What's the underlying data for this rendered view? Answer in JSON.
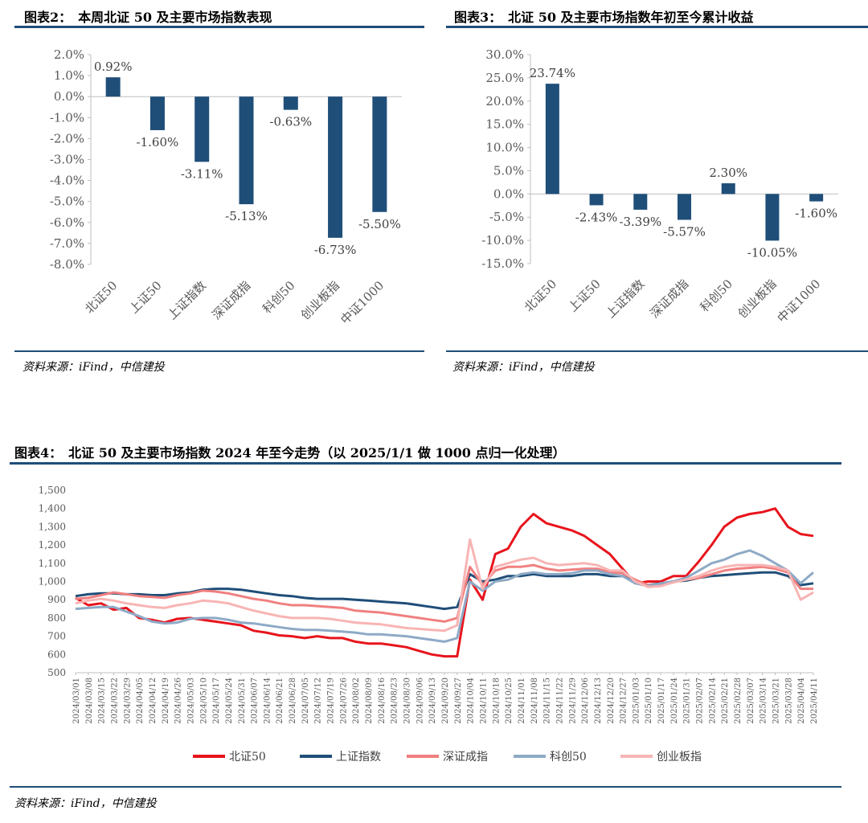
{
  "fig2": {
    "title": "图表2：　本周北证 50 及主要市场指数表现",
    "source": "资料来源：iFind，中信建投",
    "chart_data": {
      "type": "bar",
      "categories": [
        "北证50",
        "上证50",
        "上证指数",
        "深证成指",
        "科创50",
        "创业板指",
        "中证1000"
      ],
      "values": [
        0.92,
        -1.6,
        -3.11,
        -5.13,
        -0.63,
        -6.73,
        -5.5
      ],
      "value_labels": [
        "0.92%",
        "-1.60%",
        "-3.11%",
        "-5.13%",
        "-0.63%",
        "-6.73%",
        "-5.50%"
      ],
      "ylim": [
        -8,
        2
      ],
      "yticks": [
        "2.0%",
        "1.0%",
        "0.0%",
        "-1.0%",
        "-2.0%",
        "-3.0%",
        "-4.0%",
        "-5.0%",
        "-6.0%",
        "-7.0%",
        "-8.0%"
      ],
      "color": "#1f4e79"
    }
  },
  "fig3": {
    "title": "图表3：　北证 50 及主要市场指数年初至今累计收益",
    "source": "资料来源：iFind，中信建投",
    "chart_data": {
      "type": "bar",
      "categories": [
        "北证50",
        "上证50",
        "上证指数",
        "深证成指",
        "科创50",
        "创业板指",
        "中证1000"
      ],
      "values": [
        23.74,
        -2.43,
        -3.39,
        -5.57,
        2.3,
        -10.05,
        -1.6
      ],
      "value_labels": [
        "23.74%",
        "-2.43%",
        "-3.39%",
        "-5.57%",
        "2.30%",
        "-10.05%",
        "-1.60%"
      ],
      "ylim": [
        -15,
        30
      ],
      "yticks": [
        "30.0%",
        "25.0%",
        "20.0%",
        "15.0%",
        "10.0%",
        "5.0%",
        "0.0%",
        "-5.0%",
        "-10.0%",
        "-15.0%"
      ],
      "color": "#1f4e79"
    }
  },
  "fig4": {
    "title": "图表4：　北证 50 及主要市场指数 2024 年至今走势（以 2025/1/1 做 1000 点归一化处理）",
    "source": "资料来源：iFind，中信建投",
    "chart_data": {
      "type": "line",
      "ylim": [
        500,
        1500
      ],
      "yticks": [
        "1,500",
        "1,400",
        "1,300",
        "1,200",
        "1,100",
        "1,000",
        "900",
        "800",
        "700",
        "600",
        "500"
      ],
      "x": [
        "2024/03/01",
        "2024/03/08",
        "2024/03/15",
        "2024/03/22",
        "2024/03/29",
        "2024/04/05",
        "2024/04/12",
        "2024/04/19",
        "2024/04/26",
        "2024/05/03",
        "2024/05/10",
        "2024/05/17",
        "2024/05/24",
        "2024/05/31",
        "2024/06/07",
        "2024/06/14",
        "2024/06/21",
        "2024/06/28",
        "2024/07/05",
        "2024/07/12",
        "2024/07/19",
        "2024/07/26",
        "2024/08/02",
        "2024/08/09",
        "2024/08/16",
        "2024/08/23",
        "2024/08/30",
        "2024/09/06",
        "2024/09/13",
        "2024/09/20",
        "2024/09/27",
        "2024/10/04",
        "2024/10/11",
        "2024/10/18",
        "2024/10/25",
        "2024/11/01",
        "2024/11/08",
        "2024/11/15",
        "2024/11/22",
        "2024/11/29",
        "2024/12/06",
        "2024/12/13",
        "2024/12/20",
        "2024/12/27",
        "2025/01/03",
        "2025/01/10",
        "2025/01/17",
        "2025/01/24",
        "2025/01/31",
        "2025/02/07",
        "2025/02/14",
        "2025/02/21",
        "2025/02/28",
        "2025/03/07",
        "2025/03/14",
        "2025/03/21",
        "2025/03/28",
        "2025/04/04",
        "2025/04/11"
      ],
      "series": [
        {
          "name": "北证50",
          "color": "#e8141c",
          "values": [
            910,
            870,
            880,
            845,
            855,
            800,
            790,
            775,
            795,
            800,
            790,
            780,
            770,
            760,
            730,
            720,
            705,
            700,
            690,
            700,
            690,
            690,
            670,
            660,
            660,
            650,
            640,
            620,
            600,
            590,
            590,
            1010,
            900,
            1150,
            1180,
            1300,
            1370,
            1320,
            1300,
            1280,
            1250,
            1200,
            1150,
            1070,
            990,
            1000,
            1000,
            1030,
            1030,
            1110,
            1200,
            1300,
            1350,
            1370,
            1380,
            1400,
            1300,
            1260,
            1250
          ]
        },
        {
          "name": "上证指数",
          "color": "#1f4e79",
          "values": [
            920,
            930,
            935,
            935,
            930,
            930,
            925,
            925,
            935,
            940,
            955,
            960,
            960,
            955,
            945,
            935,
            925,
            920,
            910,
            905,
            905,
            905,
            900,
            895,
            890,
            885,
            880,
            870,
            860,
            850,
            860,
            1040,
            1000,
            1010,
            1030,
            1030,
            1040,
            1030,
            1030,
            1030,
            1040,
            1040,
            1030,
            1030,
            1000,
            980,
            990,
            1000,
            1005,
            1020,
            1030,
            1035,
            1040,
            1045,
            1050,
            1050,
            1030,
            980,
            990
          ]
        },
        {
          "name": "深证成指",
          "color": "#f08080",
          "values": [
            905,
            910,
            925,
            940,
            930,
            920,
            915,
            910,
            925,
            935,
            950,
            945,
            935,
            920,
            905,
            895,
            880,
            870,
            870,
            865,
            860,
            855,
            840,
            835,
            830,
            820,
            810,
            800,
            790,
            780,
            800,
            1080,
            980,
            1060,
            1080,
            1080,
            1090,
            1070,
            1060,
            1065,
            1070,
            1070,
            1050,
            1045,
            1010,
            980,
            985,
            1000,
            1010,
            1020,
            1040,
            1060,
            1070,
            1075,
            1080,
            1070,
            1050,
            960,
            960
          ]
        },
        {
          "name": "科创50",
          "color": "#8eaac6",
          "values": [
            850,
            855,
            860,
            860,
            835,
            810,
            780,
            770,
            775,
            795,
            800,
            800,
            790,
            775,
            770,
            760,
            750,
            740,
            735,
            735,
            730,
            725,
            720,
            710,
            710,
            705,
            700,
            690,
            680,
            670,
            690,
            1000,
            950,
            1000,
            1010,
            1040,
            1050,
            1040,
            1040,
            1045,
            1060,
            1060,
            1040,
            1030,
            990,
            975,
            990,
            1000,
            1020,
            1060,
            1100,
            1120,
            1150,
            1170,
            1140,
            1100,
            1060,
            990,
            1050
          ]
        },
        {
          "name": "创业板指",
          "color": "#f8b4b4",
          "values": [
            880,
            895,
            905,
            895,
            880,
            870,
            860,
            855,
            870,
            880,
            895,
            890,
            880,
            860,
            840,
            825,
            810,
            800,
            800,
            800,
            795,
            785,
            775,
            770,
            765,
            755,
            745,
            740,
            735,
            730,
            760,
            1230,
            960,
            1080,
            1100,
            1120,
            1130,
            1100,
            1090,
            1095,
            1100,
            1090,
            1060,
            1060,
            1000,
            970,
            975,
            995,
            1010,
            1030,
            1060,
            1080,
            1090,
            1090,
            1090,
            1080,
            1060,
            900,
            940
          ]
        }
      ]
    }
  }
}
